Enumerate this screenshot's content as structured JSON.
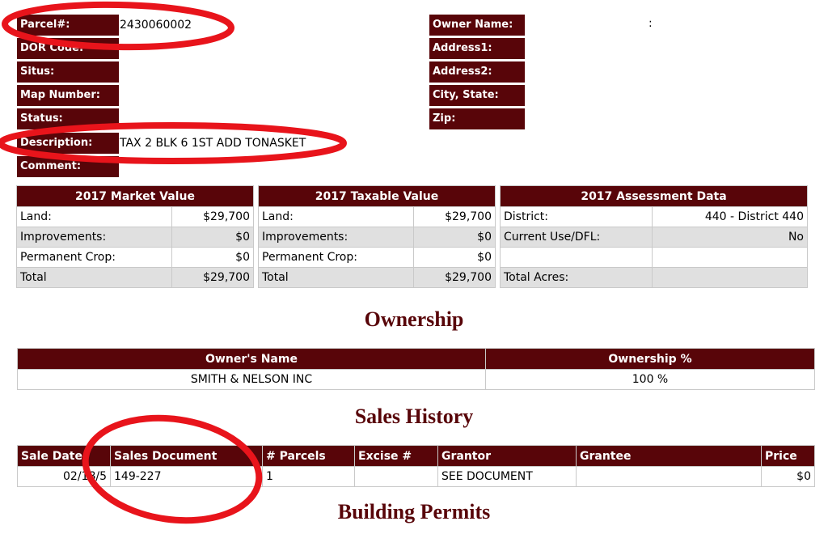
{
  "parcel": {
    "left_labels": [
      "Parcel#:",
      "DOR Code:",
      "Situs:",
      "Map Number:",
      "Status:",
      "Description:",
      "Comment:"
    ],
    "right_labels": [
      "Owner Name:",
      "Address1:",
      "Address2:",
      "City, State:",
      "Zip:"
    ],
    "parcel_number": "2430060002",
    "description": "TAX 2 BLK 6 1ST ADD TONASKET",
    "owner_name": ":"
  },
  "market_value": {
    "title": "2017 Market Value",
    "rows": [
      {
        "label": "Land:",
        "value": "$29,700"
      },
      {
        "label": "Improvements:",
        "value": "$0"
      },
      {
        "label": "Permanent Crop:",
        "value": "$0"
      },
      {
        "label": "Total",
        "value": "$29,700"
      }
    ]
  },
  "taxable_value": {
    "title": "2017 Taxable Value",
    "rows": [
      {
        "label": "Land:",
        "value": "$29,700"
      },
      {
        "label": "Improvements:",
        "value": "$0"
      },
      {
        "label": "Permanent Crop:",
        "value": "$0"
      },
      {
        "label": "Total",
        "value": "$29,700"
      }
    ]
  },
  "assessment": {
    "title": "2017 Assessment Data",
    "rows": [
      {
        "label": "District:",
        "value": "440 - District 440"
      },
      {
        "label": "Current Use/DFL:",
        "value": "No"
      },
      {
        "label": "",
        "value": ""
      },
      {
        "label": "Total Acres:",
        "value": ""
      }
    ]
  },
  "ownership": {
    "heading": "Ownership",
    "headers": [
      "Owner's Name",
      "Ownership %"
    ],
    "rows": [
      [
        "SMITH & NELSON INC",
        "100 %"
      ]
    ]
  },
  "sales_history": {
    "heading": "Sales History",
    "headers": [
      "Sale Date",
      "Sales Document",
      "# Parcels",
      "Excise #",
      "Grantor",
      "Grantee",
      "Price"
    ],
    "rows": [
      [
        "02/18/5",
        "149-227",
        "1",
        "",
        "SEE DOCUMENT",
        "",
        "$0"
      ]
    ]
  },
  "building_permits": {
    "heading": "Building Permits"
  },
  "annotation_color": "#e8141b"
}
